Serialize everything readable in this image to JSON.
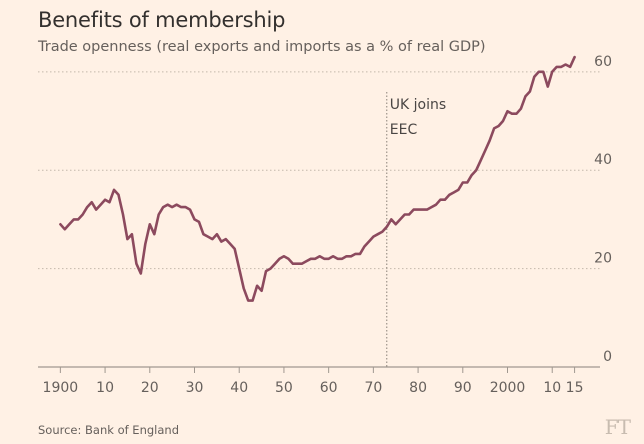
{
  "chart_data": {
    "type": "line",
    "title": "Benefits of membership",
    "subtitle": "Trade openness (real exports and imports as a % of real GDP)",
    "source": "Source: Bank of England",
    "logo": "FT",
    "xlim": [
      1895,
      2018
    ],
    "ylim": [
      0,
      62
    ],
    "x_ticks": [
      {
        "value": 1900,
        "label": "1900"
      },
      {
        "value": 1910,
        "label": "10"
      },
      {
        "value": 1920,
        "label": "20"
      },
      {
        "value": 1930,
        "label": "30"
      },
      {
        "value": 1940,
        "label": "40"
      },
      {
        "value": 1950,
        "label": "50"
      },
      {
        "value": 1960,
        "label": "60"
      },
      {
        "value": 1970,
        "label": "70"
      },
      {
        "value": 1980,
        "label": "80"
      },
      {
        "value": 1990,
        "label": "90"
      },
      {
        "value": 2000,
        "label": "2000"
      },
      {
        "value": 2010,
        "label": "10"
      },
      {
        "value": 2015,
        "label": "15"
      }
    ],
    "y_ticks": [
      {
        "value": 0,
        "label": "0"
      },
      {
        "value": 20,
        "label": "20"
      },
      {
        "value": 40,
        "label": "40"
      },
      {
        "value": 60,
        "label": "60"
      }
    ],
    "grid": true,
    "annotation": {
      "x": 1973,
      "lines": [
        "UK joins",
        "EEC"
      ]
    },
    "line_color": "#8c4a5e",
    "series": [
      {
        "x": [
          1900,
          1901,
          1902,
          1903,
          1904,
          1905,
          1906,
          1907,
          1908,
          1909,
          1910,
          1911,
          1912,
          1913,
          1914,
          1915,
          1916,
          1917,
          1918,
          1919,
          1920,
          1921,
          1922,
          1923,
          1924,
          1925,
          1926,
          1927,
          1928,
          1929,
          1930,
          1931,
          1932,
          1933,
          1934,
          1935,
          1936,
          1937,
          1938,
          1939,
          1940,
          1941,
          1942,
          1943,
          1944,
          1945,
          1946,
          1947,
          1948,
          1949,
          1950,
          1951,
          1952,
          1953,
          1954,
          1955,
          1956,
          1957,
          1958,
          1959,
          1960,
          1961,
          1962,
          1963,
          1964,
          1965,
          1966,
          1967,
          1968,
          1969,
          1970,
          1971,
          1972,
          1973,
          1974,
          1975,
          1976,
          1977,
          1978,
          1979,
          1980,
          1981,
          1982,
          1983,
          1984,
          1985,
          1986,
          1987,
          1988,
          1989,
          1990,
          1991,
          1992,
          1993,
          1994,
          1995,
          1996,
          1997,
          1998,
          1999,
          2000,
          2001,
          2002,
          2003,
          2004,
          2005,
          2006,
          2007,
          2008,
          2009,
          2010,
          2011,
          2012,
          2013,
          2014,
          2015
        ],
        "y": [
          29,
          28,
          29,
          30,
          30,
          31,
          32.5,
          33.5,
          32,
          33,
          34,
          33.5,
          36,
          35,
          31,
          26,
          27,
          21,
          19,
          25,
          29,
          27,
          31,
          32.5,
          33,
          32.5,
          33,
          32.5,
          32.5,
          32,
          30,
          29.5,
          27,
          26.5,
          26,
          27,
          25.5,
          26,
          25,
          24,
          20,
          16,
          13.5,
          13.5,
          16.5,
          15.5,
          19.5,
          20,
          21,
          22,
          22.5,
          22,
          21,
          21,
          21,
          21.5,
          22,
          22,
          22.5,
          22,
          22,
          22.5,
          22,
          22,
          22.5,
          22.5,
          23,
          23,
          24.5,
          25.5,
          26.5,
          27,
          27.5,
          28.5,
          30,
          29,
          30,
          31,
          31,
          32,
          32,
          32,
          32,
          32.5,
          33,
          34,
          34,
          35,
          35.5,
          36,
          37.5,
          37.5,
          39,
          40,
          42,
          44,
          46,
          48.5,
          49,
          50,
          52,
          51.5,
          51.5,
          52.5,
          55,
          56,
          59,
          60,
          60,
          57,
          60,
          61,
          61,
          61.5,
          61,
          63
        ]
      }
    ]
  }
}
